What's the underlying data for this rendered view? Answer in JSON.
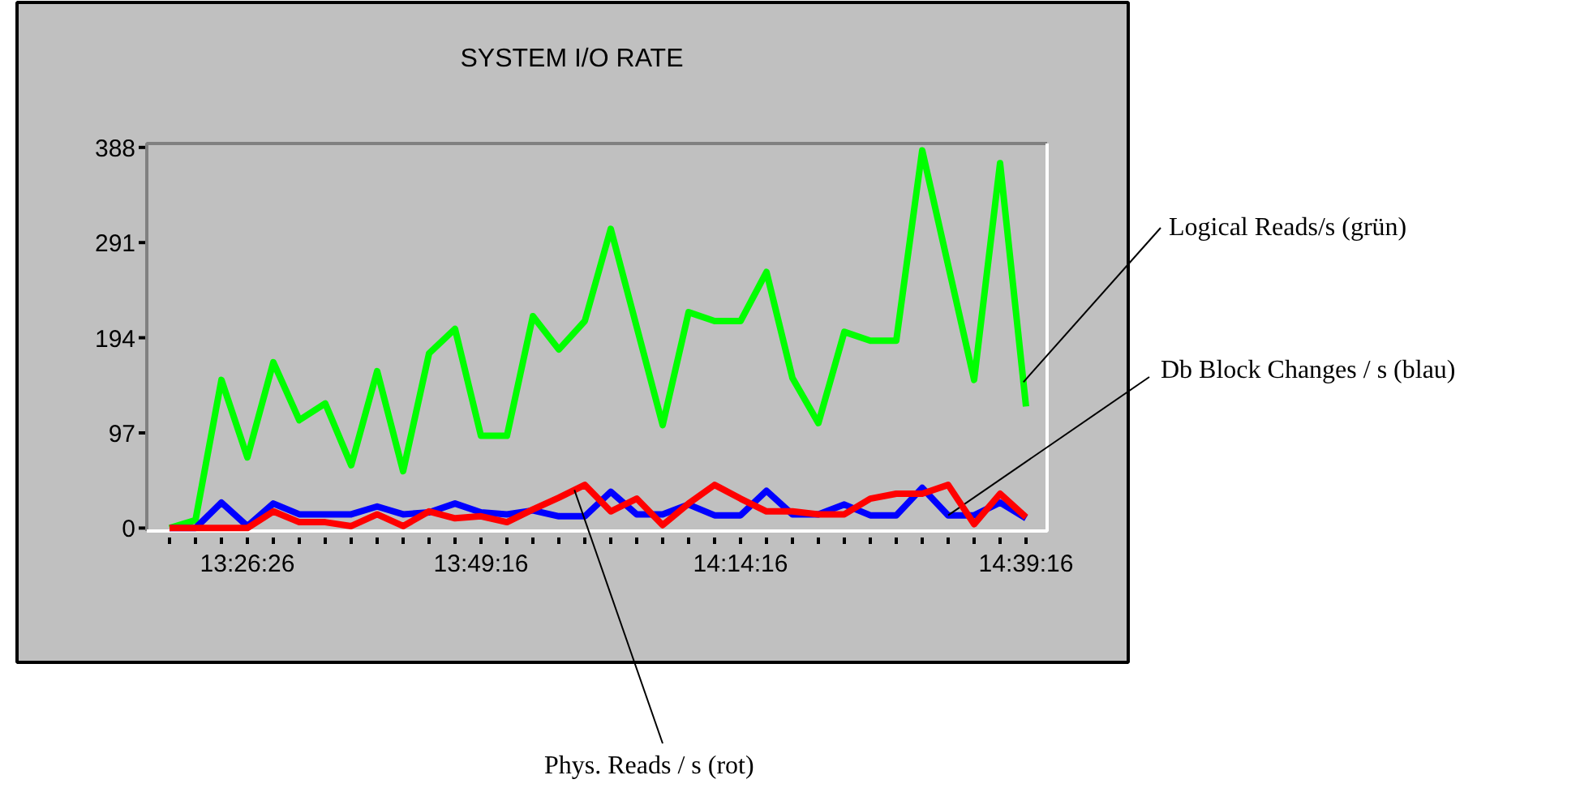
{
  "chart_data": {
    "type": "line",
    "title": "SYSTEM I/O RATE",
    "categories": [
      null,
      null,
      null,
      "13:26:26",
      null,
      null,
      null,
      null,
      null,
      null,
      null,
      null,
      "13:49:16",
      null,
      null,
      null,
      null,
      null,
      null,
      null,
      null,
      null,
      "14:14:16",
      null,
      null,
      null,
      null,
      null,
      null,
      null,
      null,
      null,
      null,
      "14:39:16"
    ],
    "series": [
      {
        "name": "Logical Reads/s (grün)",
        "color": "#00ff00",
        "values": [
          0,
          8,
          151,
          72,
          169,
          110,
          127,
          64,
          160,
          58,
          178,
          203,
          94,
          94,
          216,
          182,
          211,
          305,
          205,
          105,
          220,
          211,
          211,
          261,
          153,
          107,
          200,
          191,
          191,
          385,
          268,
          151,
          372,
          124
        ]
      },
      {
        "name": "Db Block Changes / s (blau)",
        "color": "#0000ff",
        "values": [
          0,
          0,
          26,
          2,
          25,
          14,
          14,
          14,
          22,
          14,
          16,
          25,
          16,
          14,
          18,
          12,
          12,
          37,
          14,
          14,
          24,
          13,
          13,
          38,
          14,
          14,
          24,
          13,
          13,
          41,
          13,
          13,
          26,
          10
        ]
      },
      {
        "name": "Phys. Reads / s (rot)",
        "color": "#ff0000",
        "values": [
          0,
          0,
          0,
          0,
          17,
          6,
          6,
          2,
          14,
          2,
          17,
          10,
          12,
          6,
          19,
          31,
          44,
          17,
          30,
          3,
          25,
          44,
          30,
          17,
          17,
          14,
          14,
          30,
          35,
          35,
          44,
          4,
          35,
          11
        ]
      }
    ],
    "ylim": [
      -3,
      392
    ],
    "yticks": [
      0,
      97,
      194,
      291,
      388
    ],
    "grid": false,
    "marker": "none",
    "line_style": "solid"
  }
}
